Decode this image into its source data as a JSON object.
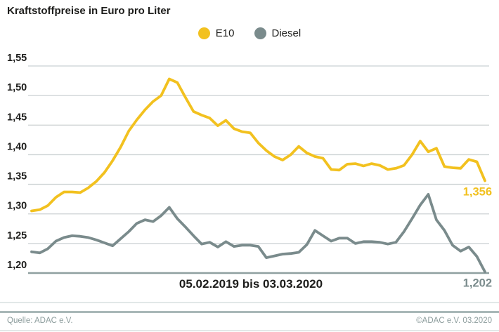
{
  "title": "Kraftstoffpreise in Euro pro Liter",
  "legend": [
    {
      "label": "E10",
      "color": "#F2C11F"
    },
    {
      "label": "Diesel",
      "color": "#7A8B8C"
    }
  ],
  "footer": {
    "source_left": "Quelle: ADAC e.V.",
    "source_right": "©ADAC e.V.  03.2020"
  },
  "colors": {
    "e10": "#F2C11F",
    "diesel": "#7A8B8C",
    "grid": "#cbd1d3",
    "axis": "#8fa0a0",
    "text": "#1d1d1b",
    "footer_text": "#8d9d9d"
  },
  "chart_data": {
    "type": "line",
    "title": "Kraftstoffpreise in Euro pro Liter",
    "x_label": "05.02.2019 bis 03.03.2020",
    "x_start": "05.02.2019",
    "x_end": "03.03.2020",
    "x_interval": "weekly",
    "ylabel": "Euro pro Liter",
    "ylim": [
      1.2,
      1.55
    ],
    "grid": true,
    "legend_position": "top-center",
    "y_ticks": [
      {
        "label": "1,55",
        "value": 1.55
      },
      {
        "label": "1,50",
        "value": 1.5
      },
      {
        "label": "1,45",
        "value": 1.45
      },
      {
        "label": "1,40",
        "value": 1.4
      },
      {
        "label": "1,35",
        "value": 1.35
      },
      {
        "label": "1,30",
        "value": 1.3
      },
      {
        "label": "1,25",
        "value": 1.25
      },
      {
        "label": "1,20",
        "value": 1.2
      }
    ],
    "series": [
      {
        "name": "E10",
        "color": "#F2C11F",
        "end_label": "1,356",
        "end_value": 1.356,
        "values": [
          1.305,
          1.307,
          1.314,
          1.328,
          1.337,
          1.337,
          1.336,
          1.344,
          1.355,
          1.37,
          1.39,
          1.413,
          1.44,
          1.459,
          1.476,
          1.49,
          1.5,
          1.528,
          1.522,
          1.497,
          1.473,
          1.467,
          1.462,
          1.449,
          1.458,
          1.444,
          1.439,
          1.437,
          1.42,
          1.407,
          1.397,
          1.391,
          1.4,
          1.414,
          1.403,
          1.397,
          1.394,
          1.375,
          1.374,
          1.384,
          1.385,
          1.381,
          1.385,
          1.382,
          1.375,
          1.377,
          1.382,
          1.4,
          1.423,
          1.405,
          1.411,
          1.38,
          1.378,
          1.377,
          1.392,
          1.388,
          1.356
        ]
      },
      {
        "name": "Diesel",
        "color": "#7A8B8C",
        "end_label": "1,202",
        "end_value": 1.202,
        "values": [
          1.236,
          1.234,
          1.241,
          1.254,
          1.26,
          1.263,
          1.262,
          1.26,
          1.256,
          1.251,
          1.246,
          1.258,
          1.27,
          1.284,
          1.29,
          1.287,
          1.297,
          1.311,
          1.292,
          1.278,
          1.263,
          1.249,
          1.252,
          1.244,
          1.253,
          1.245,
          1.247,
          1.247,
          1.245,
          1.226,
          1.229,
          1.232,
          1.233,
          1.235,
          1.248,
          1.272,
          1.263,
          1.254,
          1.259,
          1.259,
          1.25,
          1.253,
          1.253,
          1.252,
          1.249,
          1.252,
          1.27,
          1.292,
          1.315,
          1.333,
          1.29,
          1.272,
          1.247,
          1.237,
          1.244,
          1.228,
          1.202
        ]
      }
    ]
  }
}
